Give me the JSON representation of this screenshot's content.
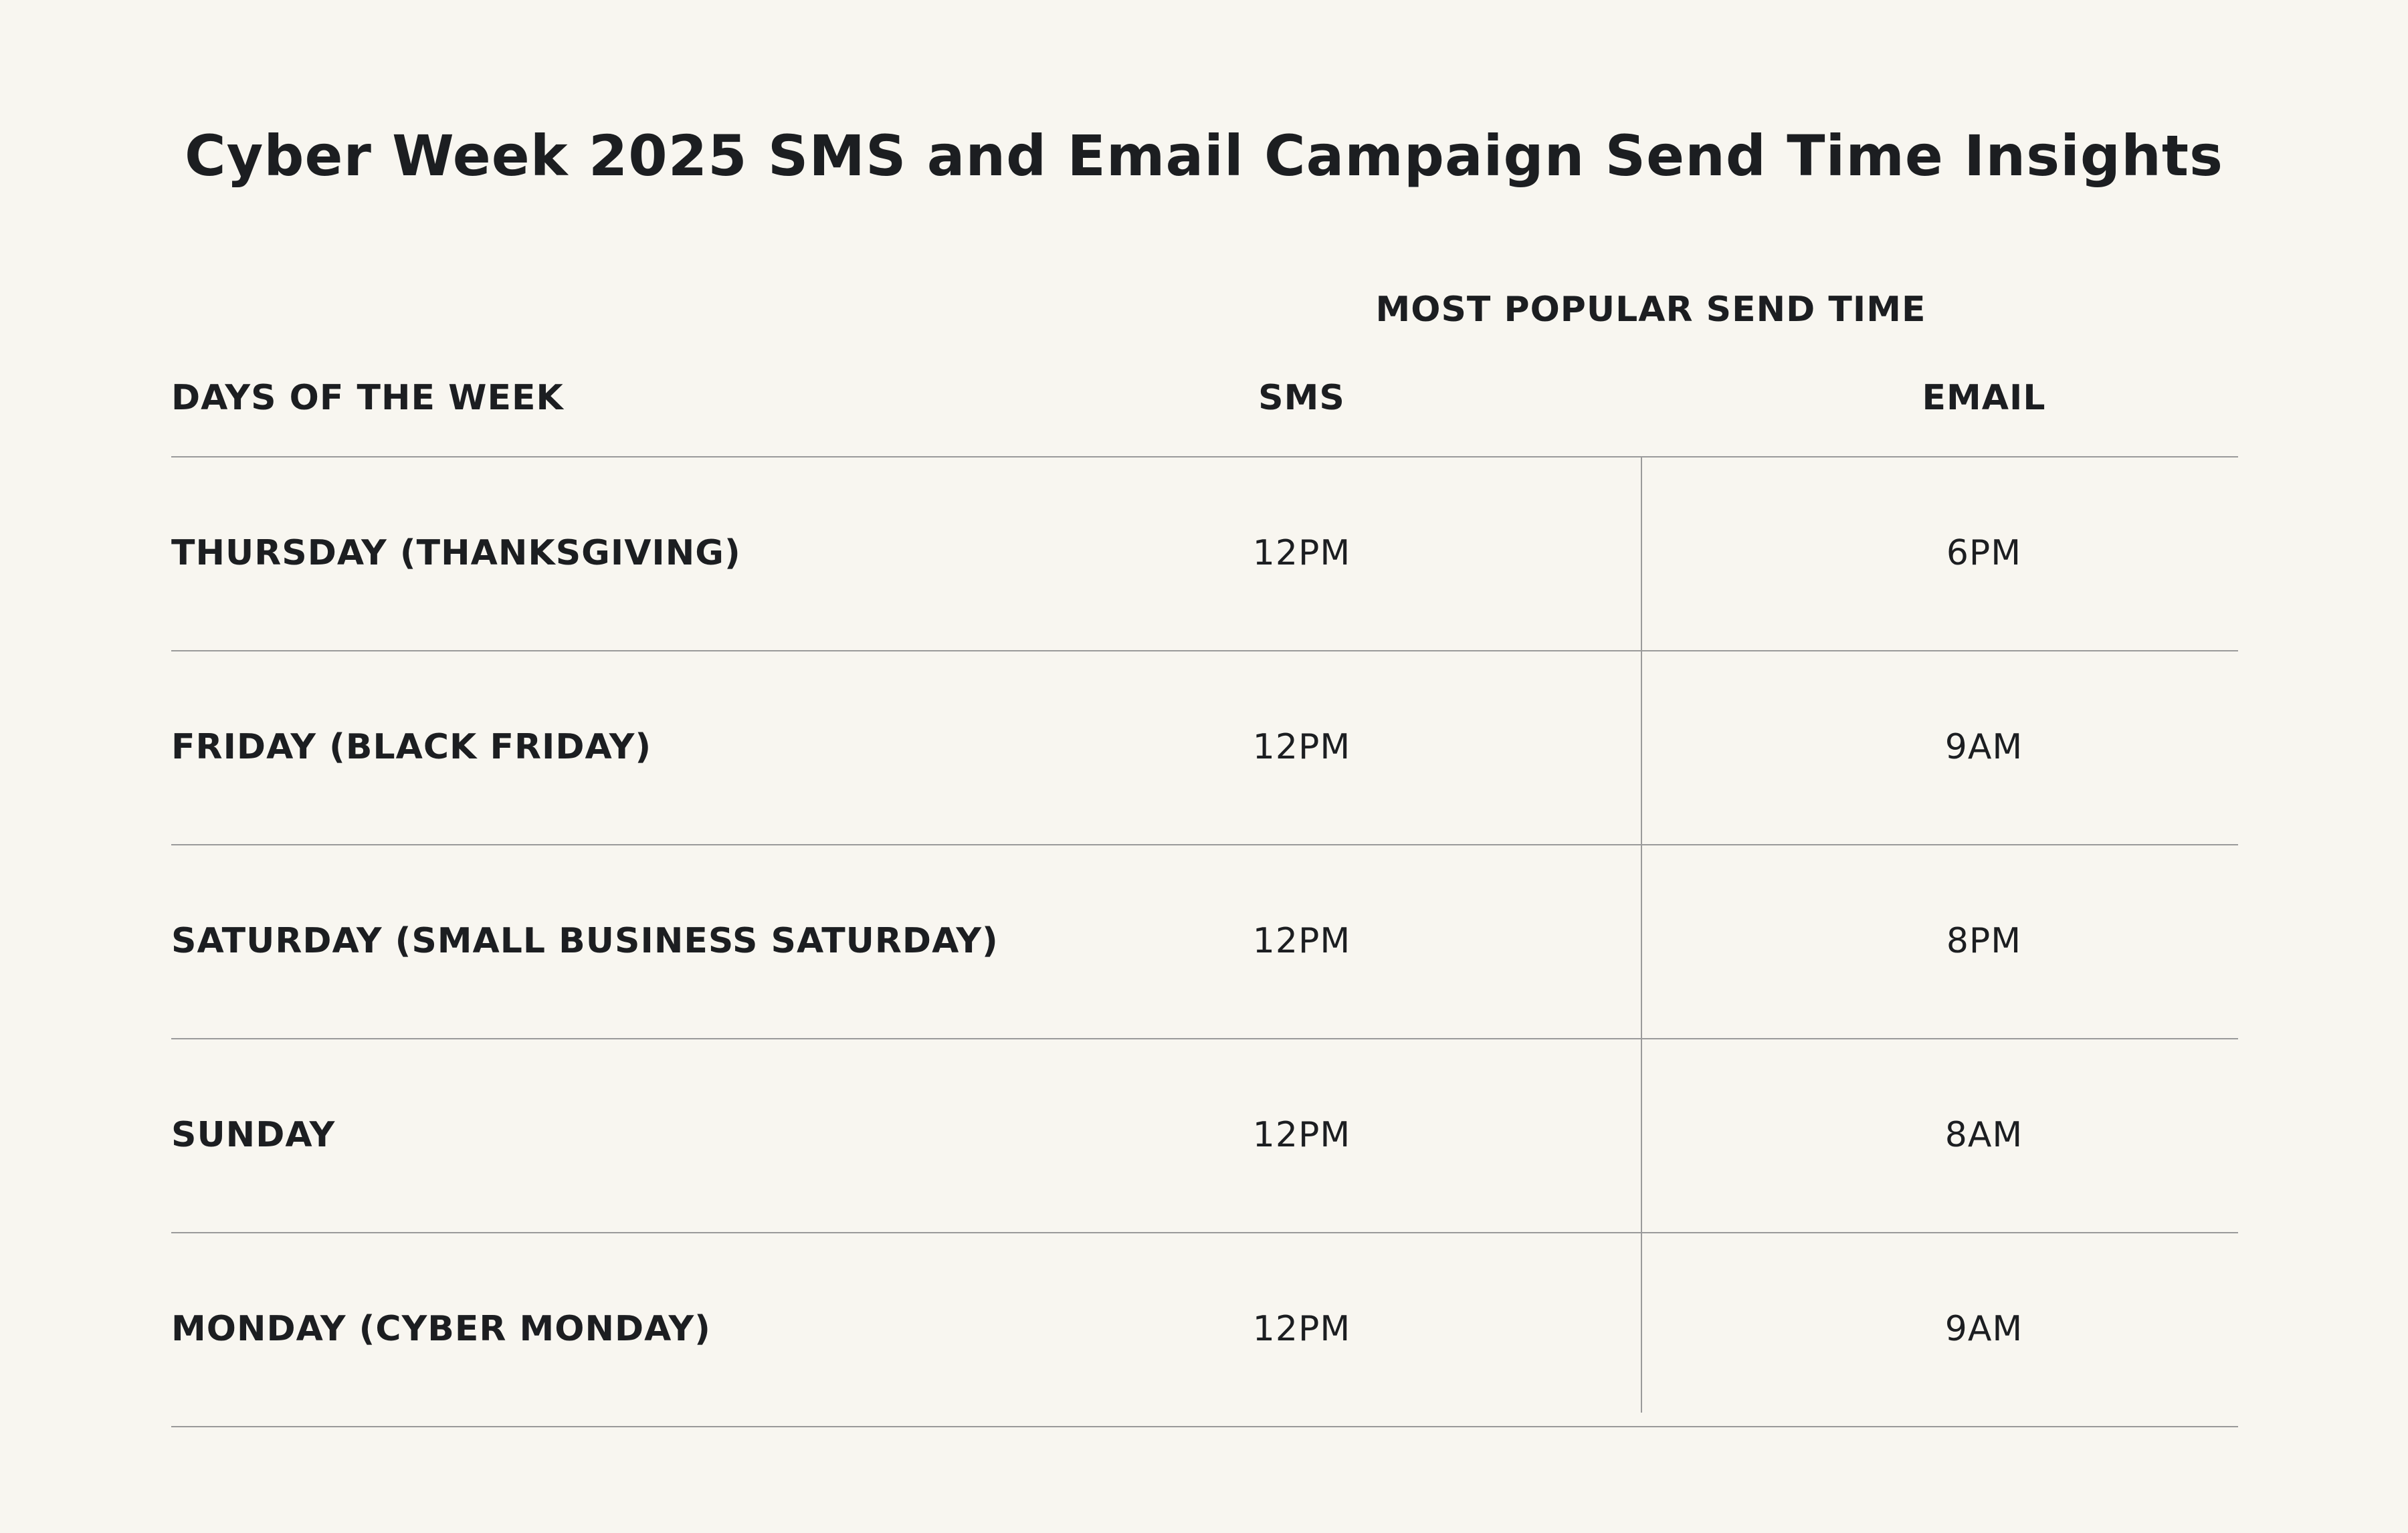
{
  "title": "Cyber Week 2025 SMS and Email Campaign Send Time Insights",
  "chart_data": {
    "type": "table",
    "title": "Cyber Week 2025 SMS and Email Campaign Send Time Insights",
    "group_header": "MOST POPULAR SEND TIME",
    "columns": [
      "DAYS OF THE WEEK",
      "SMS",
      "EMAIL"
    ],
    "rows": [
      {
        "day": "THURSDAY (THANKSGIVING)",
        "sms": "12PM",
        "email": "6PM"
      },
      {
        "day": "FRIDAY (BLACK FRIDAY)",
        "sms": "12PM",
        "email": "9AM"
      },
      {
        "day": "SATURDAY (SMALL BUSINESS SATURDAY)",
        "sms": "12PM",
        "email": "8PM"
      },
      {
        "day": "SUNDAY",
        "sms": "12PM",
        "email": "8AM"
      },
      {
        "day": "MONDAY (CYBER MONDAY)",
        "sms": "12PM",
        "email": "9AM"
      }
    ]
  },
  "colors": {
    "background": "#f8f6f0",
    "text": "#1c1e21",
    "rule": "#9a9a9a"
  }
}
